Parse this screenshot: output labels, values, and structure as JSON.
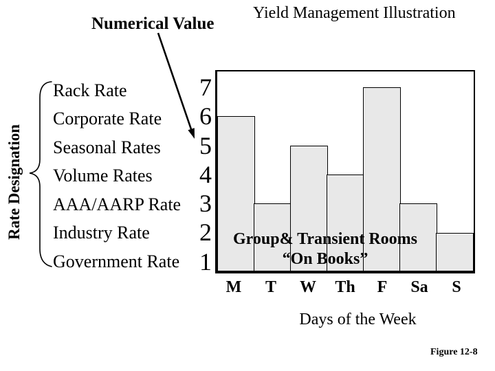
{
  "slide": {
    "title": "Yield Management Illustration",
    "numerical_value_heading": "Numerical Value",
    "rate_designation_label": "Rate Designation",
    "rate_list": [
      "Rack Rate",
      "Corporate Rate",
      "Seasonal Rates",
      "Volume Rates",
      "AAA/AARP Rate",
      "Industry Rate",
      "Government Rate"
    ],
    "figure_caption": "Figure 12-8"
  },
  "chart_data": {
    "type": "bar",
    "categories": [
      "M",
      "T",
      "W",
      "Th",
      "F",
      "Sa",
      "S"
    ],
    "values": [
      6,
      3,
      5,
      4,
      7,
      3,
      2
    ],
    "yticks": [
      7,
      6,
      5,
      4,
      3,
      2,
      1
    ],
    "ylim": [
      0,
      7.6
    ],
    "xlabel": "Days of the Week",
    "ylabel": "Numerical Value",
    "annotation_line1": "Group& Transient Rooms",
    "annotation_line2": "“On Books”",
    "bar_fill": "#E8E8E8",
    "bar_border": "#000000",
    "grid": false,
    "legend": false
  }
}
